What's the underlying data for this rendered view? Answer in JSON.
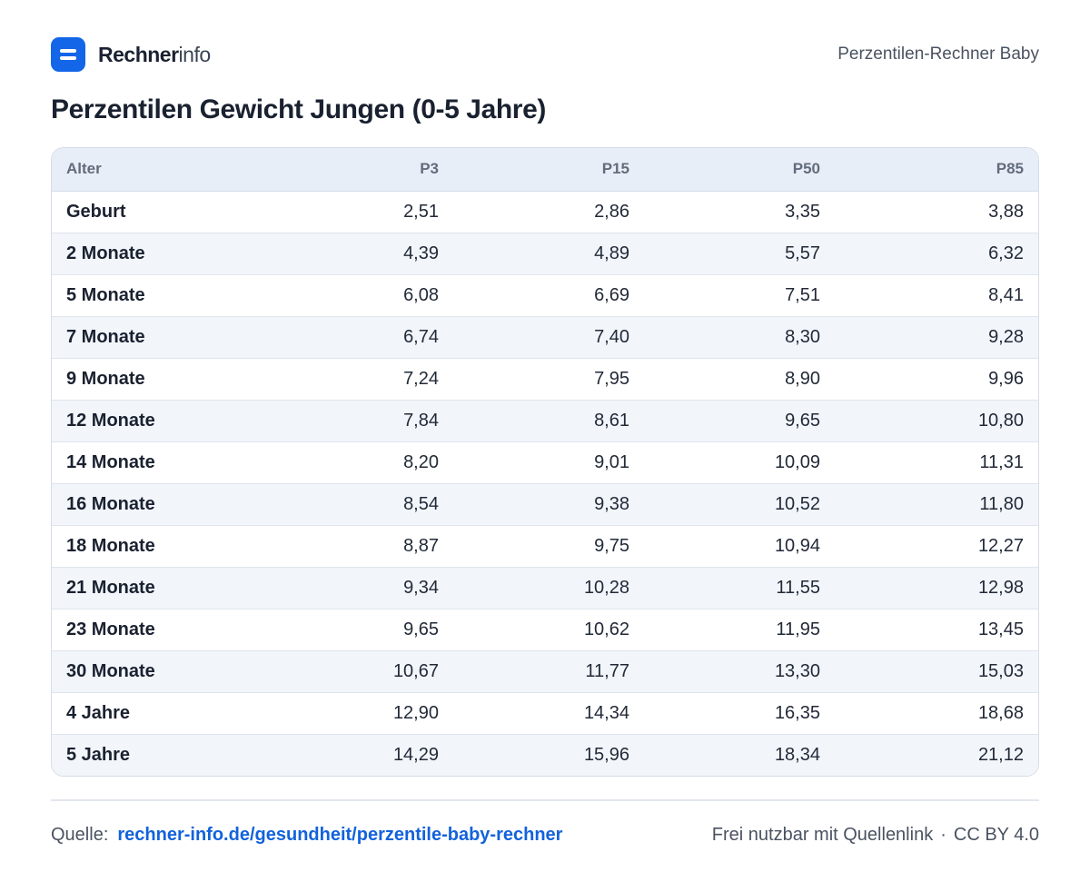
{
  "brand": {
    "name_bold": "Rechner",
    "name_light": "info",
    "logo_icon": "equals-icon",
    "accent": "#1366e8"
  },
  "header": {
    "subtitle": "Perzentilen-Rechner Baby"
  },
  "title": "Perzentilen Gewicht Jungen (0-5 Jahre)",
  "table": {
    "columns": [
      "Alter",
      "P3",
      "P15",
      "P50",
      "P85"
    ],
    "rows": [
      [
        "Geburt",
        "2,51",
        "2,86",
        "3,35",
        "3,88"
      ],
      [
        "2 Monate",
        "4,39",
        "4,89",
        "5,57",
        "6,32"
      ],
      [
        "5 Monate",
        "6,08",
        "6,69",
        "7,51",
        "8,41"
      ],
      [
        "7 Monate",
        "6,74",
        "7,40",
        "8,30",
        "9,28"
      ],
      [
        "9 Monate",
        "7,24",
        "7,95",
        "8,90",
        "9,96"
      ],
      [
        "12 Monate",
        "7,84",
        "8,61",
        "9,65",
        "10,80"
      ],
      [
        "14 Monate",
        "8,20",
        "9,01",
        "10,09",
        "11,31"
      ],
      [
        "16 Monate",
        "8,54",
        "9,38",
        "10,52",
        "11,80"
      ],
      [
        "18 Monate",
        "8,87",
        "9,75",
        "10,94",
        "12,27"
      ],
      [
        "21 Monate",
        "9,34",
        "10,28",
        "11,55",
        "12,98"
      ],
      [
        "23 Monate",
        "9,65",
        "10,62",
        "11,95",
        "13,45"
      ],
      [
        "30 Monate",
        "10,67",
        "11,77",
        "13,30",
        "15,03"
      ],
      [
        "4 Jahre",
        "12,90",
        "14,34",
        "16,35",
        "18,68"
      ],
      [
        "5 Jahre",
        "14,29",
        "15,96",
        "18,34",
        "21,12"
      ]
    ]
  },
  "footer": {
    "source_label": "Quelle:",
    "source_link": "rechner-info.de/gesundheit/perzentile-baby-rechner",
    "license_text": "Frei nutzbar mit Quellenlink",
    "separator": "·",
    "license": "CC BY 4.0"
  }
}
